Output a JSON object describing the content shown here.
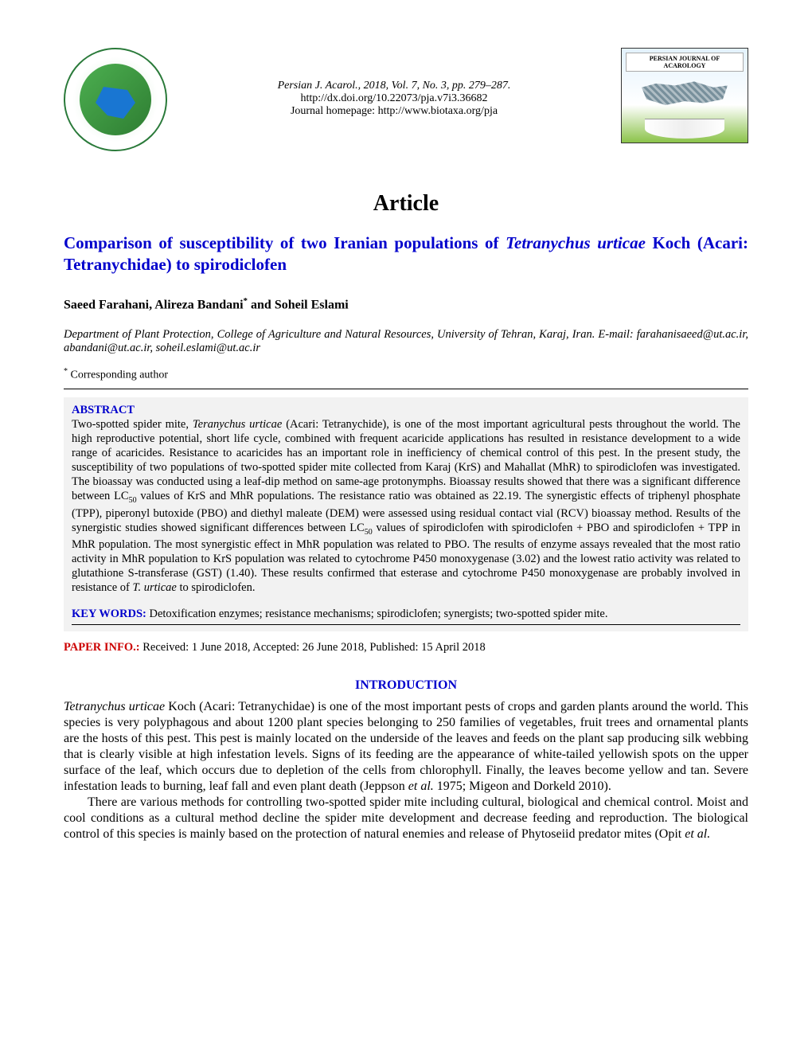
{
  "header": {
    "citation": "Persian J. Acarol., 2018, Vol. 7, No. 3, pp. 279–287.",
    "doi": "http://dx.doi.org/10.22073/pja.v7i3.36682",
    "homepage": "Journal homepage: http://www.biotaxa.org/pja",
    "journal_logo_title": "PERSIAN JOURNAL OF ACAROLOGY"
  },
  "article": {
    "type": "Article",
    "title_part1": "Comparison of susceptibility of two Iranian populations of ",
    "title_italic": "Tetranychus urticae",
    "title_part2": " Koch (Acari: Tetranychidae) to spirodiclofen",
    "authors": "Saeed Farahani, Alireza Bandani",
    "authors_suffix": " and Soheil Eslami",
    "affiliation": "Department of Plant Protection, College of Agriculture and Natural Resources, University of Tehran, Karaj, Iran. E-mail: farahanisaeed@ut.ac.ir, abandani@ut.ac.ir, soheil.eslami@ut.ac.ir",
    "corresponding": " Corresponding author"
  },
  "abstract": {
    "label": "ABSTRACT",
    "p1a": "Two-spotted spider mite, ",
    "p1b": "Teranychus urticae",
    "p1c": " (Acari: Tetranychide), is one of the most important agricultural pests throughout the world. The high reproductive potential, short life cycle, combined with frequent acaricide applications has resulted in resistance development to a wide range of acaricides. Resistance to acaricides has an important role in inefficiency of chemical control of this pest. In the present study, the susceptibility of two populations of two-spotted spider mite collected from Karaj (KrS) and Mahallat (MhR) to spirodiclofen was investigated. The bioassay was conducted using a leaf-dip method on same-age protonymphs. Bioassay results showed that there was a significant difference between LC",
    "p1d": " values of KrS and MhR populations. The resistance ratio was obtained as 22.19. The synergistic effects of triphenyl phosphate (TPP), piperonyl butoxide (PBO) and diethyl maleate (DEM) were assessed using residual contact vial (RCV) bioassay method. Results of the synergistic studies showed significant differences between LC",
    "p1e": " values of spirodiclofen with spirodiclofen + PBO and spirodiclofen + TPP in MhR population. The most synergistic effect in MhR population was related to PBO. The results of enzyme assays revealed that the most ratio activity in MhR population to KrS population was related to cytochrome P450 monoxygenase (3.02) and the lowest ratio activity was related to glutathione S-transferase (GST) (1.40). These results confirmed that esterase and cytochrome P450 monoxygenase are probably involved in resistance of ",
    "p1f": "T. urticae",
    "p1g": " to spirodiclofen.",
    "keywords_label": "KEY WORDS:",
    "keywords_text": " Detoxification enzymes; resistance mechanisms; spirodiclofen; synergists; two-spotted spider mite."
  },
  "paper_info": {
    "label": "PAPER INFO.:",
    "text": "  Received: 1 June 2018, Accepted: 26 June 2018, Published: 15 April 2018"
  },
  "introduction": {
    "header": "INTRODUCTION",
    "p1a": "Tetranychus urticae",
    "p1b": " Koch (Acari: Tetranychidae) is one of the most important pests of crops and garden plants around the world. This species is very polyphagous and about 1200 plant species belonging to 250 families of vegetables, fruit trees and ornamental plants are the hosts of this pest. This pest is mainly located on the underside of the leaves and feeds on the plant sap producing silk webbing that is clearly visible at high infestation levels. Signs of its feeding are the appearance of white-tailed yellowish spots on the upper surface of the leaf, which occurs due to depletion of the cells from chlorophyll. Finally, the leaves become yellow and tan. Severe infestation leads to burning, leaf fall and even plant death (Jeppson ",
    "p1c": "et al.",
    "p1d": " 1975; Migeon and Dorkeld 2010).",
    "p2a": "There are various methods for controlling two-spotted spider mite including cultural, biological and chemical control. Moist and cool conditions as a cultural method decline the spider mite development and decrease feeding and reproduction. The biological control of this species is mainly based on the protection of natural enemies and release of Phytoseiid predator mites (Opit ",
    "p2b": "et al."
  },
  "colors": {
    "title_blue": "#0000cc",
    "info_red": "#cc0000",
    "abstract_bg": "#f2f2f2"
  }
}
